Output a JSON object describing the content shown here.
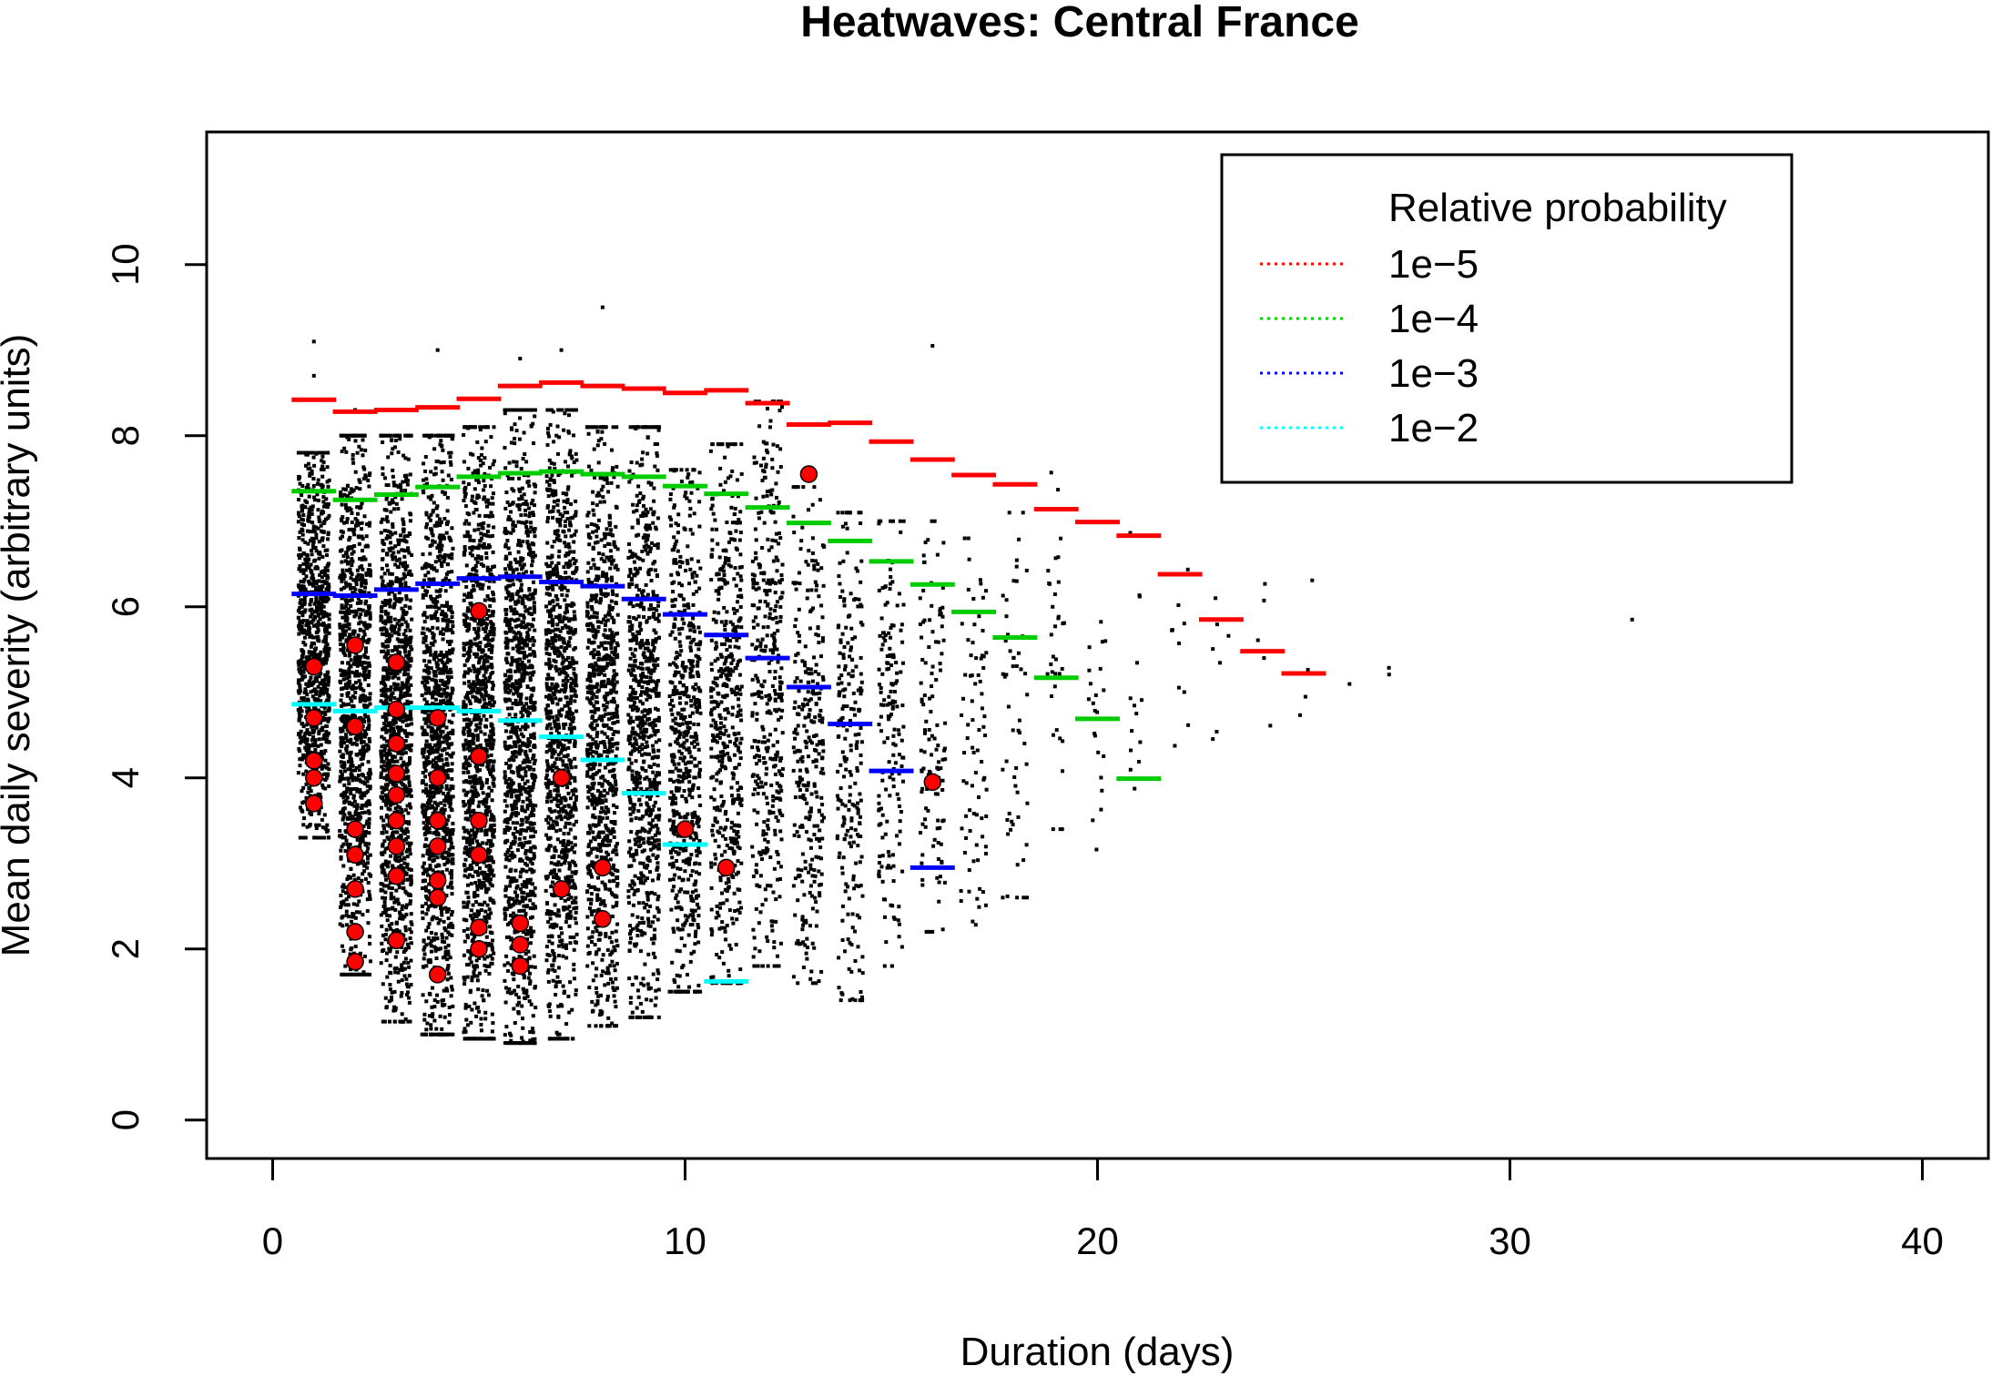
{
  "chart_data": {
    "type": "scatter",
    "title": "Heatwaves: Central France",
    "xlabel": "Duration (days)",
    "ylabel": "Mean daily severity (arbitrary units)",
    "xlim": [
      -1.6,
      41.6
    ],
    "ylim": [
      -0.45,
      11.55
    ],
    "x_ticks": [
      0,
      10,
      20,
      30,
      40
    ],
    "y_ticks": [
      0,
      2,
      4,
      6,
      8,
      10
    ],
    "grid": false,
    "legend": {
      "title": "Relative probability",
      "position": "top-right",
      "entries": [
        {
          "label": "1e−5",
          "color": "#ff0000"
        },
        {
          "label": "1e−4",
          "color": "#00cc00"
        },
        {
          "label": "1e−3",
          "color": "#0000ff"
        },
        {
          "label": "1e−2",
          "color": "#00ffff"
        }
      ]
    },
    "simulated_spread": [
      {
        "x": 1,
        "ymin": 3.3,
        "ymax": 7.8,
        "n": 900
      },
      {
        "x": 2,
        "ymin": 1.7,
        "ymax": 8.0,
        "n": 1000
      },
      {
        "x": 3,
        "ymin": 1.15,
        "ymax": 8.0,
        "n": 1100
      },
      {
        "x": 4,
        "ymin": 1.0,
        "ymax": 8.0,
        "n": 1100
      },
      {
        "x": 5,
        "ymin": 0.95,
        "ymax": 8.1,
        "n": 1100
      },
      {
        "x": 6,
        "ymin": 0.9,
        "ymax": 8.3,
        "n": 1100
      },
      {
        "x": 7,
        "ymin": 0.95,
        "ymax": 8.3,
        "n": 1000
      },
      {
        "x": 8,
        "ymin": 1.1,
        "ymax": 8.1,
        "n": 900
      },
      {
        "x": 9,
        "ymin": 1.2,
        "ymax": 8.1,
        "n": 800
      },
      {
        "x": 10,
        "ymin": 1.5,
        "ymax": 7.6,
        "n": 600
      },
      {
        "x": 11,
        "ymin": 1.6,
        "ymax": 7.9,
        "n": 500
      },
      {
        "x": 12,
        "ymin": 1.8,
        "ymax": 8.4,
        "n": 400
      },
      {
        "x": 13,
        "ymin": 1.6,
        "ymax": 7.4,
        "n": 300
      },
      {
        "x": 14,
        "ymin": 1.4,
        "ymax": 7.1,
        "n": 230
      },
      {
        "x": 15,
        "ymin": 1.8,
        "ymax": 7.0,
        "n": 170
      },
      {
        "x": 16,
        "ymin": 2.2,
        "ymax": 7.0,
        "n": 120
      },
      {
        "x": 17,
        "ymin": 2.1,
        "ymax": 6.8,
        "n": 80
      },
      {
        "x": 18,
        "ymin": 2.6,
        "ymax": 7.1,
        "n": 55
      },
      {
        "x": 19,
        "ymin": 3.4,
        "ymax": 7.7,
        "n": 35
      },
      {
        "x": 20,
        "ymin": 3.0,
        "ymax": 6.3,
        "n": 22
      },
      {
        "x": 21,
        "ymin": 2.9,
        "ymax": 7.8,
        "n": 14
      },
      {
        "x": 22,
        "ymin": 3.6,
        "ymax": 7.0,
        "n": 10
      },
      {
        "x": 23,
        "ymin": 4.0,
        "ymax": 6.1,
        "n": 7
      },
      {
        "x": 24,
        "ymin": 3.5,
        "ymax": 6.7,
        "n": 5
      },
      {
        "x": 25,
        "ymin": 4.4,
        "ymax": 6.5,
        "n": 4
      },
      {
        "x": 26,
        "ymin": 5.0,
        "ymax": 5.1,
        "n": 1
      },
      {
        "x": 27,
        "ymin": 5.1,
        "ymax": 5.4,
        "n": 2
      },
      {
        "x": 33,
        "ymin": 5.85,
        "ymax": 5.85,
        "n": 1
      }
    ],
    "simulated_outliers": [
      {
        "x": 1,
        "y": 9.1
      },
      {
        "x": 1,
        "y": 8.7
      },
      {
        "x": 2,
        "y": 8.3
      },
      {
        "x": 4,
        "y": 9.0
      },
      {
        "x": 6,
        "y": 8.9
      },
      {
        "x": 7,
        "y": 9.0
      },
      {
        "x": 8,
        "y": 9.5
      },
      {
        "x": 16,
        "y": 9.05
      }
    ],
    "observed": [
      {
        "x": 1,
        "y": 5.3
      },
      {
        "x": 1,
        "y": 4.7
      },
      {
        "x": 1,
        "y": 4.2
      },
      {
        "x": 1,
        "y": 4.0
      },
      {
        "x": 1,
        "y": 3.7
      },
      {
        "x": 2,
        "y": 5.55
      },
      {
        "x": 2,
        "y": 4.6
      },
      {
        "x": 2,
        "y": 3.4
      },
      {
        "x": 2,
        "y": 3.1
      },
      {
        "x": 2,
        "y": 2.7
      },
      {
        "x": 2,
        "y": 2.2
      },
      {
        "x": 2,
        "y": 1.85
      },
      {
        "x": 3,
        "y": 5.35
      },
      {
        "x": 3,
        "y": 4.8
      },
      {
        "x": 3,
        "y": 4.4
      },
      {
        "x": 3,
        "y": 4.05
      },
      {
        "x": 3,
        "y": 3.8
      },
      {
        "x": 3,
        "y": 3.5
      },
      {
        "x": 3,
        "y": 3.2
      },
      {
        "x": 3,
        "y": 2.85
      },
      {
        "x": 3,
        "y": 2.1
      },
      {
        "x": 4,
        "y": 4.7
      },
      {
        "x": 4,
        "y": 4.0
      },
      {
        "x": 4,
        "y": 3.5
      },
      {
        "x": 4,
        "y": 3.2
      },
      {
        "x": 4,
        "y": 2.8
      },
      {
        "x": 4,
        "y": 2.6
      },
      {
        "x": 4,
        "y": 1.7
      },
      {
        "x": 5,
        "y": 5.95
      },
      {
        "x": 5,
        "y": 4.25
      },
      {
        "x": 5,
        "y": 3.5
      },
      {
        "x": 5,
        "y": 3.1
      },
      {
        "x": 5,
        "y": 2.25
      },
      {
        "x": 5,
        "y": 2.0
      },
      {
        "x": 6,
        "y": 2.3
      },
      {
        "x": 6,
        "y": 2.05
      },
      {
        "x": 6,
        "y": 1.8
      },
      {
        "x": 7,
        "y": 4.0
      },
      {
        "x": 7,
        "y": 2.7
      },
      {
        "x": 8,
        "y": 2.95
      },
      {
        "x": 8,
        "y": 2.35
      },
      {
        "x": 10,
        "y": 3.4
      },
      {
        "x": 11,
        "y": 2.95
      },
      {
        "x": 13,
        "y": 7.55
      },
      {
        "x": 16,
        "y": 3.95
      }
    ],
    "series": [
      {
        "name": "1e−5",
        "color": "#ff0000",
        "x": [
          1,
          2,
          3,
          4,
          5,
          6,
          7,
          8,
          9,
          10,
          11,
          12,
          13,
          14,
          15,
          16,
          17,
          18,
          19,
          20,
          21,
          22,
          23,
          24,
          25
        ],
        "values": [
          8.42,
          8.28,
          8.3,
          8.33,
          8.43,
          8.58,
          8.62,
          8.58,
          8.55,
          8.5,
          8.53,
          8.38,
          8.13,
          8.15,
          7.93,
          7.72,
          7.54,
          7.43,
          7.14,
          6.99,
          6.83,
          6.38,
          5.85,
          5.48,
          5.22
        ]
      },
      {
        "name": "1e−4",
        "color": "#00cc00",
        "x": [
          1,
          2,
          3,
          4,
          5,
          6,
          7,
          8,
          9,
          10,
          11,
          12,
          13,
          14,
          15,
          16,
          17,
          18,
          19,
          20,
          21
        ],
        "values": [
          7.35,
          7.25,
          7.31,
          7.4,
          7.52,
          7.56,
          7.58,
          7.55,
          7.52,
          7.41,
          7.32,
          7.16,
          6.98,
          6.77,
          6.53,
          6.26,
          5.94,
          5.64,
          5.17,
          4.69,
          3.99
        ]
      },
      {
        "name": "1e−3",
        "color": "#0000ff",
        "x": [
          1,
          2,
          3,
          4,
          5,
          6,
          7,
          8,
          9,
          10,
          11,
          12,
          13,
          14,
          15,
          16
        ],
        "values": [
          6.15,
          6.13,
          6.2,
          6.27,
          6.33,
          6.35,
          6.29,
          6.24,
          6.09,
          5.91,
          5.67,
          5.4,
          5.06,
          4.63,
          4.08,
          2.95
        ]
      },
      {
        "name": "1e−2",
        "color": "#00ffff",
        "x": [
          1,
          2,
          3,
          4,
          5,
          6,
          7,
          8,
          9,
          10,
          11
        ],
        "values": [
          4.86,
          4.78,
          4.82,
          4.82,
          4.78,
          4.67,
          4.48,
          4.21,
          3.82,
          3.22,
          1.62
        ]
      }
    ]
  }
}
